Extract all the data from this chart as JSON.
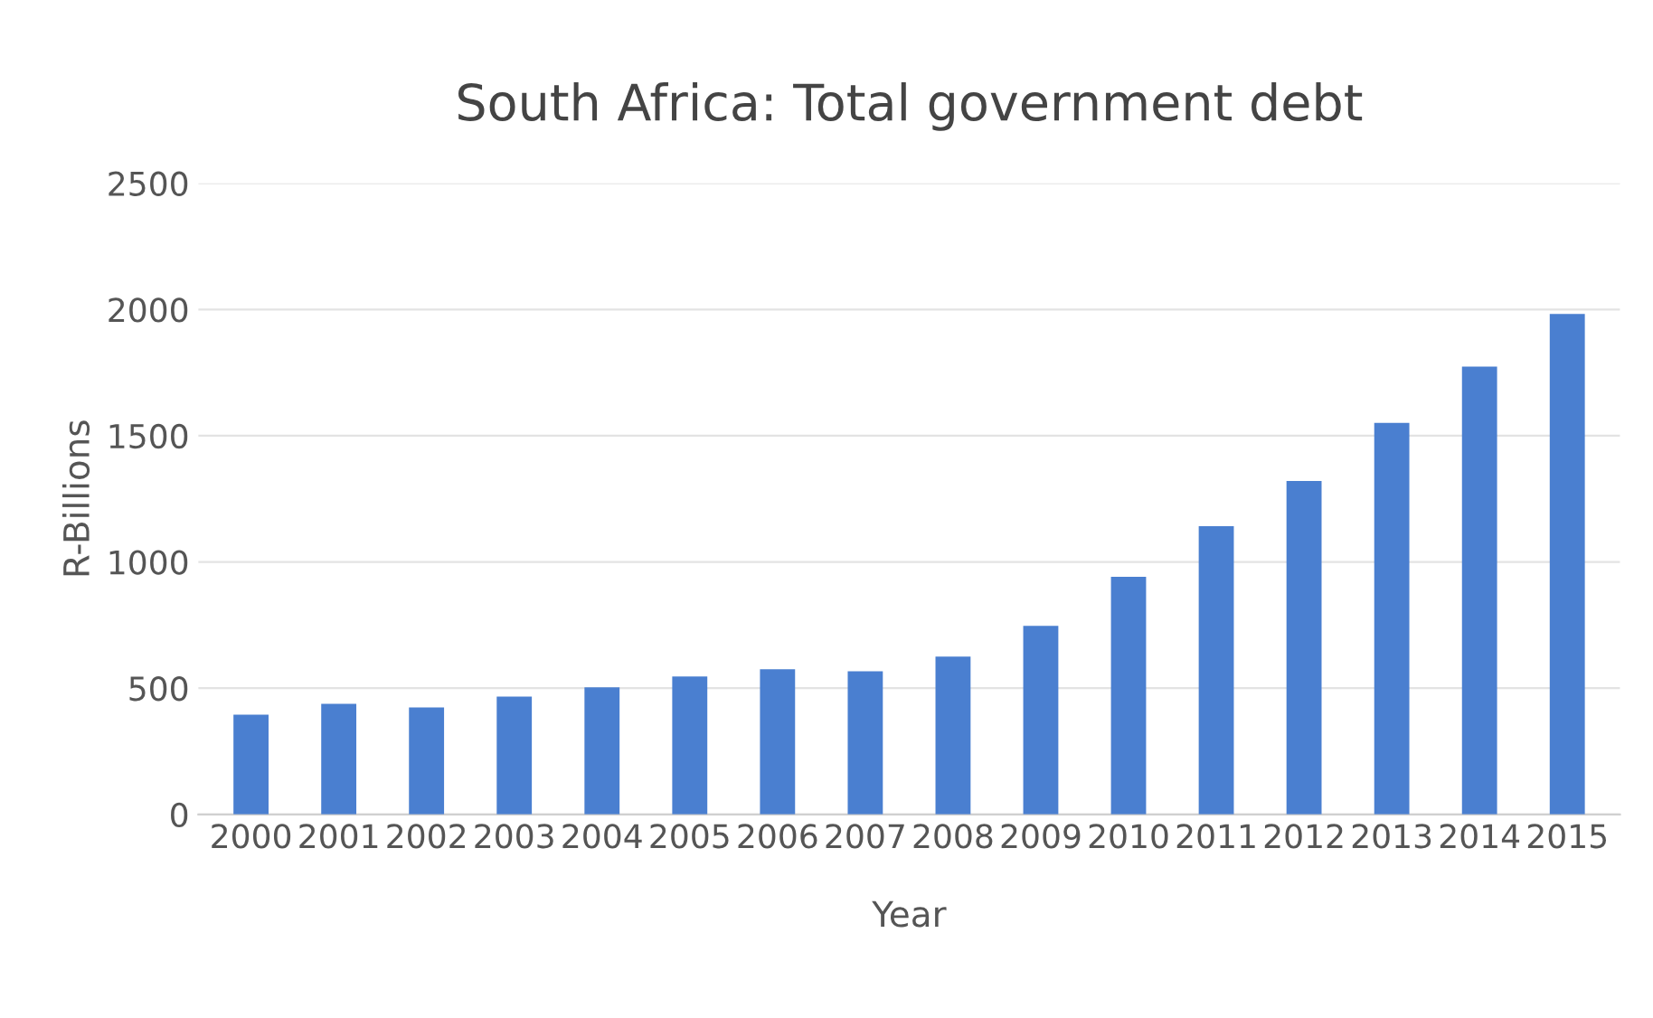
{
  "chart_data": {
    "type": "bar",
    "title": "South Africa: Total government debt",
    "xlabel": "Year",
    "ylabel": "R-Billions",
    "categories": [
      "2000",
      "2001",
      "2002",
      "2003",
      "2004",
      "2005",
      "2006",
      "2007",
      "2008",
      "2009",
      "2010",
      "2011",
      "2012",
      "2013",
      "2014",
      "2015"
    ],
    "values": [
      395,
      438,
      424,
      467,
      503,
      546,
      575,
      567,
      625,
      747,
      941,
      1142,
      1321,
      1551,
      1774,
      1982
    ],
    "color": "#4a7fd0",
    "ylim": [
      0,
      2500
    ],
    "yticks": [
      0,
      500,
      1000,
      1500,
      2000,
      2500
    ],
    "grid": "y"
  }
}
